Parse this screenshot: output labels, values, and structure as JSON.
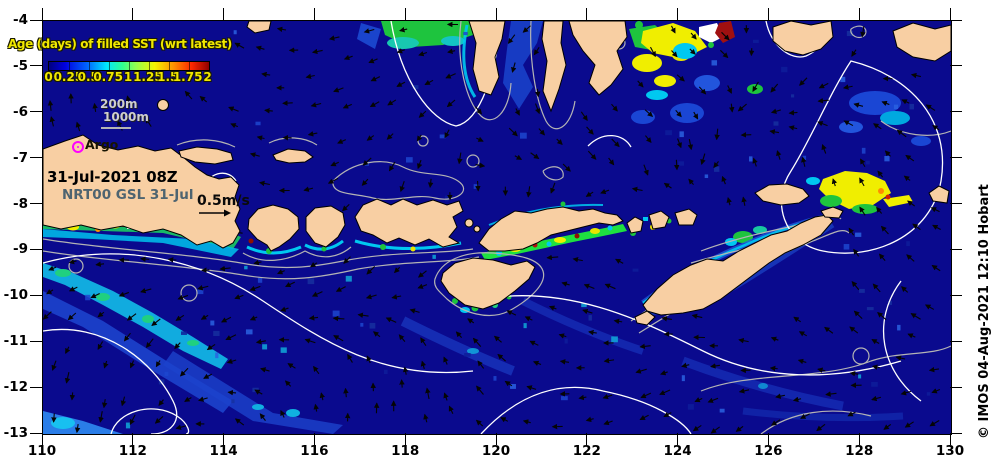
{
  "title": "Age (days) of filled SST (wrt latest)",
  "colorbar": {
    "tick_labels": [
      "0",
      "0.25",
      "0.5",
      "0.75",
      "1",
      "1.25",
      "1.5",
      "1.75",
      "2"
    ]
  },
  "depth_legend": {
    "line1": "200m",
    "line2": "1000m"
  },
  "argo_label": "Argo",
  "timestamp": "31-Jul-2021 08Z",
  "model_label": "NRT00 GSL 31-Jul",
  "scale_label": "0.5m/s",
  "credit": "© IMOS 04-Aug-2021 12:10 Hobart",
  "axes": {
    "lat_ticks": [
      "-4",
      "-5",
      "-6",
      "-7",
      "-8",
      "-9",
      "-10",
      "-11",
      "-12",
      "-13"
    ],
    "lon_ticks": [
      "110",
      "112",
      "114",
      "116",
      "118",
      "120",
      "122",
      "124",
      "126",
      "128",
      "130"
    ]
  },
  "colors": {
    "ocean": "#0a0a8e",
    "land": "#f8cfa3",
    "label_yellow": "#f0e800",
    "argo_marker": "#ff00ff",
    "contour_white": "#ffffff",
    "contour_gray": "#b4b4b4",
    "model_text": "#4e6470",
    "vector_black": "#050505"
  }
}
